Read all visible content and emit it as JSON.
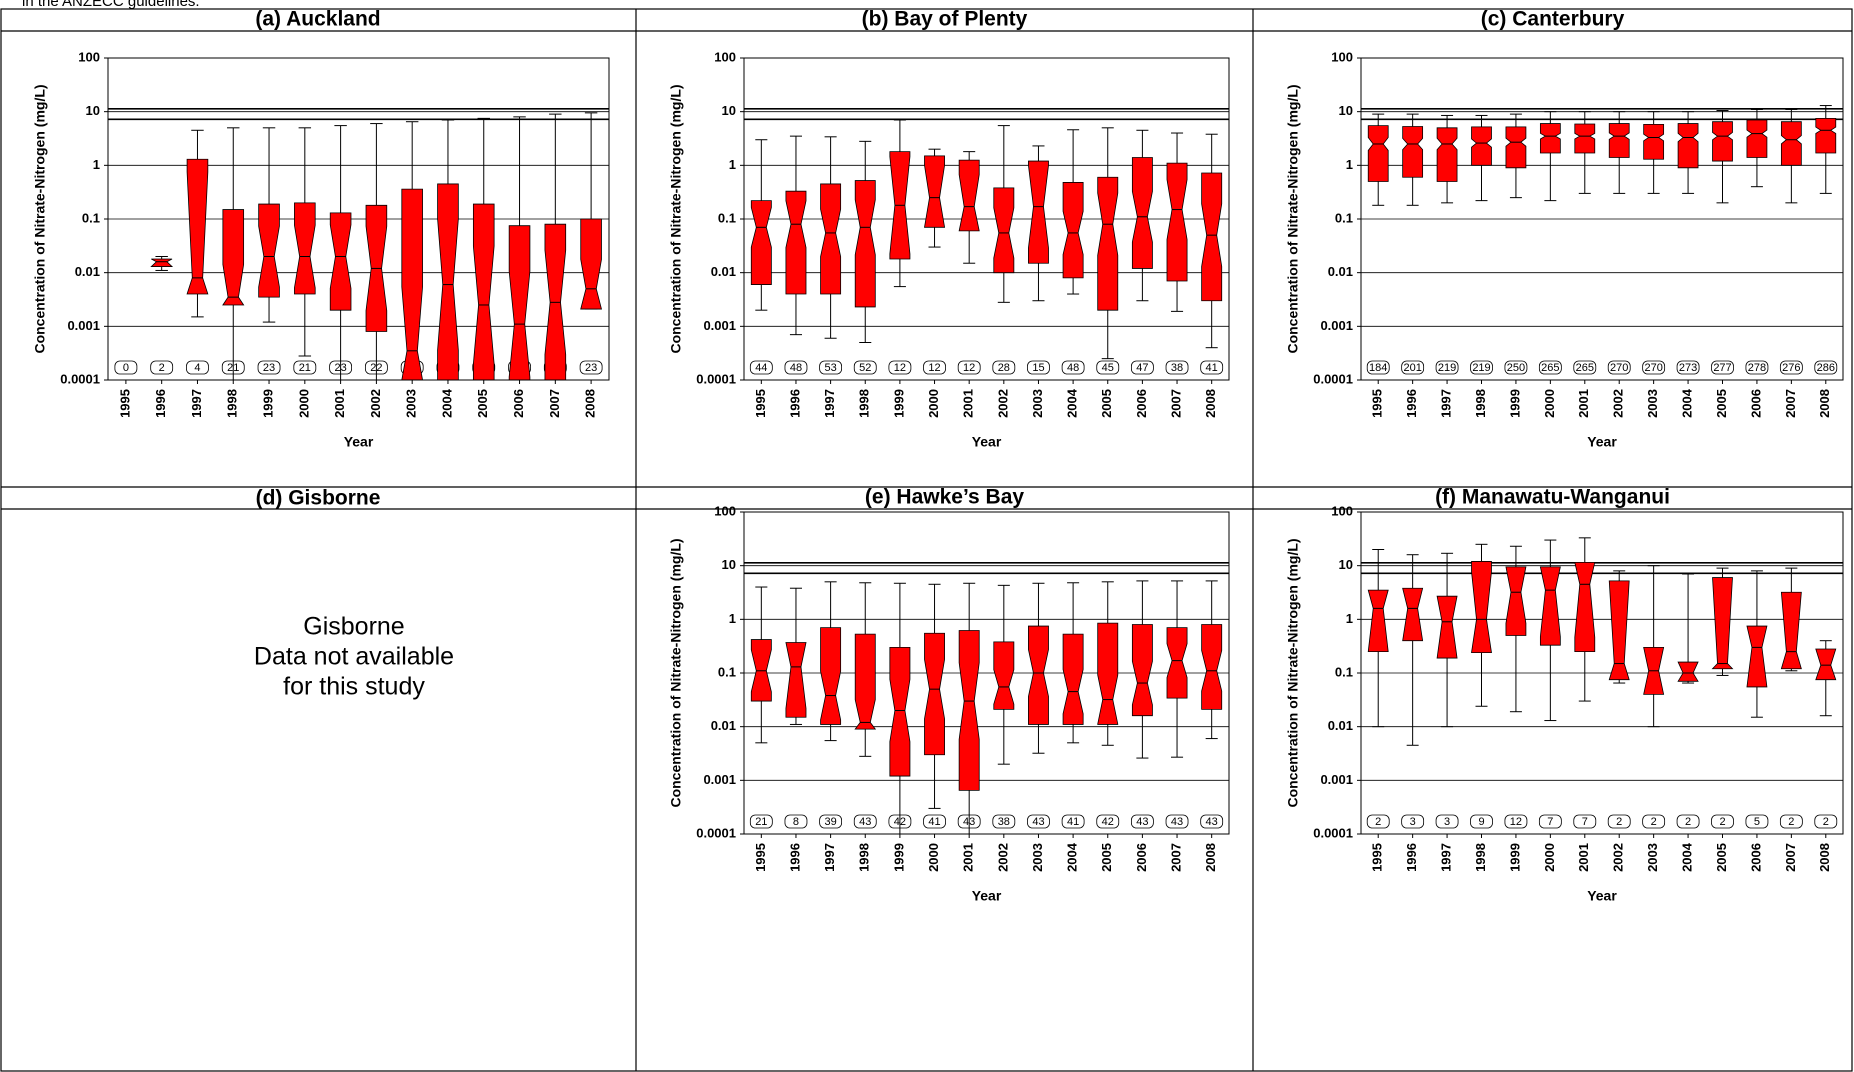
{
  "note": "in the ANZECC guidelines.",
  "panel_d": {
    "title": "(d) Gisborne",
    "lines": [
      "Gisborne",
      "Data not available",
      "for this study"
    ]
  },
  "chart_data": [
    {
      "type": "box",
      "title": "(a) Auckland",
      "xlabel": "Year",
      "ylabel": "Concentration of Nitrate-Nitrogen (mg/L)",
      "categories": [
        "1995",
        "1996",
        "1997",
        "1998",
        "1999",
        "2000",
        "2001",
        "2002",
        "2003",
        "2004",
        "2005",
        "2006",
        "2007",
        "2008"
      ],
      "whisker_low": [
        null,
        0.011,
        0.0015,
        0.0001,
        0.0012,
        0.00028,
        0.0001,
        0.0001,
        0.0001,
        0.0001,
        0.0001,
        0.0001,
        0.0001,
        0.0021
      ],
      "q1": [
        null,
        0.013,
        0.004,
        0.0025,
        0.0035,
        0.004,
        0.002,
        0.0008,
        0.0001,
        0.0001,
        0.0001,
        0.0001,
        0.0001,
        0.0021
      ],
      "median": [
        null,
        0.016,
        0.008,
        0.0035,
        0.02,
        0.02,
        0.02,
        0.012,
        0.00035,
        0.006,
        0.0025,
        0.0011,
        0.0028,
        0.005
      ],
      "q3": [
        null,
        0.018,
        1.3,
        0.15,
        0.19,
        0.2,
        0.13,
        0.18,
        0.36,
        0.45,
        0.19,
        0.075,
        0.08,
        0.1
      ],
      "whisker_high": [
        null,
        0.02,
        4.5,
        5,
        5,
        5,
        5.5,
        6,
        6.5,
        7,
        7.5,
        8,
        9,
        9.5
      ],
      "n": [
        0,
        2,
        4,
        21,
        23,
        21,
        23,
        22,
        22,
        22,
        22,
        21,
        22,
        23
      ],
      "color": "#ff0000",
      "log_y": true,
      "grid": true,
      "reference_lines": [
        7.2,
        11.3
      ],
      "ylim": [
        0.0001,
        100
      ],
      "yticks": [
        0.0001,
        0.001,
        0.01,
        0.1,
        1,
        10,
        100
      ]
    },
    {
      "type": "box",
      "title": "(b) Bay of Plenty",
      "xlabel": "Year",
      "ylabel": "Concentration of Nitrate-Nitrogen (mg/L)",
      "categories": [
        "1995",
        "1996",
        "1997",
        "1998",
        "1999",
        "2000",
        "2001",
        "2002",
        "2003",
        "2004",
        "2005",
        "2006",
        "2007",
        "2008"
      ],
      "whisker_low": [
        0.002,
        0.0007,
        0.0006,
        0.0005,
        0.0055,
        0.03,
        0.015,
        0.0028,
        0.003,
        0.004,
        0.00025,
        0.003,
        0.0019,
        0.0004
      ],
      "q1": [
        0.006,
        0.004,
        0.004,
        0.0023,
        0.018,
        0.07,
        0.06,
        0.01,
        0.015,
        0.008,
        0.002,
        0.012,
        0.007,
        0.003
      ],
      "median": [
        0.07,
        0.08,
        0.055,
        0.07,
        0.18,
        0.25,
        0.17,
        0.055,
        0.17,
        0.055,
        0.08,
        0.11,
        0.15,
        0.05
      ],
      "q3": [
        0.22,
        0.33,
        0.45,
        0.52,
        1.8,
        1.5,
        1.25,
        0.38,
        1.2,
        0.48,
        0.6,
        1.4,
        1.1,
        0.72
      ],
      "whisker_high": [
        3,
        3.5,
        3.4,
        2.8,
        7,
        2,
        1.8,
        5.5,
        2.3,
        4.6,
        5,
        4.5,
        4,
        3.8
      ],
      "n": [
        44,
        48,
        53,
        52,
        12,
        12,
        12,
        28,
        15,
        48,
        45,
        47,
        38,
        41
      ],
      "color": "#ff0000",
      "log_y": true,
      "grid": true,
      "reference_lines": [
        7.2,
        11.3
      ],
      "ylim": [
        0.0001,
        100
      ],
      "yticks": [
        0.0001,
        0.001,
        0.01,
        0.1,
        1,
        10,
        100
      ]
    },
    {
      "type": "box",
      "title": "(c) Canterbury",
      "xlabel": "Year",
      "ylabel": "Concentration of Nitrate-Nitrogen (mg/L)",
      "categories": [
        "1995",
        "1996",
        "1997",
        "1998",
        "1999",
        "2000",
        "2001",
        "2002",
        "2003",
        "2004",
        "2005",
        "2006",
        "2007",
        "2008"
      ],
      "whisker_low": [
        0.18,
        0.18,
        0.2,
        0.22,
        0.25,
        0.22,
        0.3,
        0.3,
        0.3,
        0.3,
        0.2,
        0.4,
        0.2,
        0.3
      ],
      "q1": [
        0.5,
        0.6,
        0.5,
        1,
        0.9,
        1.7,
        1.7,
        1.4,
        1.3,
        0.9,
        1.2,
        1.4,
        1,
        1.7
      ],
      "median": [
        2.5,
        2.5,
        2.5,
        2.6,
        2.7,
        3.5,
        3.5,
        3.5,
        3.3,
        3.3,
        3.5,
        3.9,
        3,
        4.5
      ],
      "q3": [
        5.5,
        5.3,
        5,
        5.2,
        5.2,
        6,
        5.9,
        6,
        5.8,
        6,
        6.5,
        7,
        6.5,
        7.5
      ],
      "whisker_high": [
        9,
        9,
        8.5,
        8.5,
        9,
        10,
        10,
        10,
        10,
        10,
        10.5,
        11,
        11,
        13
      ],
      "n": [
        184,
        201,
        219,
        219,
        250,
        265,
        265,
        270,
        270,
        273,
        277,
        278,
        276,
        286
      ],
      "color": "#ff0000",
      "log_y": true,
      "grid": true,
      "reference_lines": [
        7.2,
        11.3
      ],
      "ylim": [
        0.0001,
        100
      ],
      "yticks": [
        0.0001,
        0.001,
        0.01,
        0.1,
        1,
        10,
        100
      ]
    },
    {
      "type": "box",
      "title": "(e) Hawke’s Bay",
      "xlabel": "Year",
      "ylabel": "Concentration of Nitrate-Nitrogen (mg/L)",
      "categories": [
        "1995",
        "1996",
        "1997",
        "1998",
        "1999",
        "2000",
        "2001",
        "2002",
        "2003",
        "2004",
        "2005",
        "2006",
        "2007",
        "2008"
      ],
      "whisker_low": [
        0.005,
        0.011,
        0.0055,
        0.0028,
        0.0001,
        0.0003,
        0.0001,
        0.002,
        0.0032,
        0.005,
        0.0045,
        0.0026,
        0.0027,
        0.006
      ],
      "q1": [
        0.03,
        0.015,
        0.011,
        0.009,
        0.0012,
        0.003,
        0.00065,
        0.021,
        0.011,
        0.011,
        0.011,
        0.016,
        0.034,
        0.021
      ],
      "median": [
        0.11,
        0.13,
        0.038,
        0.012,
        0.02,
        0.05,
        0.03,
        0.055,
        0.1,
        0.045,
        0.032,
        0.065,
        0.17,
        0.11
      ],
      "q3": [
        0.42,
        0.37,
        0.7,
        0.53,
        0.3,
        0.55,
        0.62,
        0.38,
        0.75,
        0.53,
        0.85,
        0.8,
        0.7,
        0.8
      ],
      "whisker_high": [
        4,
        3.8,
        5,
        4.8,
        4.7,
        4.5,
        4.7,
        4.3,
        4.7,
        4.8,
        5,
        5.2,
        5.2,
        5.2
      ],
      "n": [
        21,
        8,
        39,
        43,
        42,
        41,
        43,
        38,
        43,
        41,
        42,
        43,
        43,
        43
      ],
      "color": "#ff0000",
      "log_y": true,
      "grid": true,
      "reference_lines": [
        7.2,
        11.3
      ],
      "ylim": [
        0.0001,
        100
      ],
      "yticks": [
        0.0001,
        0.001,
        0.01,
        0.1,
        1,
        10,
        100
      ]
    },
    {
      "type": "box",
      "title": "(f) Manawatu-Wanganui",
      "xlabel": "Year",
      "ylabel": "Concentration of Nitrate-Nitrogen (mg/L)",
      "categories": [
        "1995",
        "1996",
        "1997",
        "1998",
        "1999",
        "2000",
        "2001",
        "2002",
        "2003",
        "2004",
        "2005",
        "2006",
        "2007",
        "2008"
      ],
      "whisker_low": [
        0.01,
        0.0045,
        0.01,
        0.024,
        0.019,
        0.013,
        0.03,
        0.065,
        0.01,
        0.065,
        0.09,
        0.015,
        0.11,
        0.016
      ],
      "q1": [
        0.25,
        0.4,
        0.19,
        0.24,
        0.5,
        0.33,
        0.25,
        0.075,
        0.04,
        0.07,
        0.12,
        0.055,
        0.12,
        0.075
      ],
      "median": [
        1.6,
        1.6,
        0.9,
        1,
        3.2,
        3.5,
        4.5,
        0.15,
        0.11,
        0.1,
        0.15,
        0.3,
        0.25,
        0.14
      ],
      "q3": [
        3.5,
        3.8,
        2.7,
        12,
        9.5,
        9.5,
        11.5,
        5.2,
        0.3,
        0.16,
        6,
        0.75,
        3.2,
        0.28
      ],
      "whisker_high": [
        20,
        16,
        17,
        25,
        23,
        30,
        33,
        8,
        10,
        7,
        9,
        8,
        9,
        0.4
      ],
      "n": [
        2,
        3,
        3,
        9,
        12,
        7,
        7,
        2,
        2,
        2,
        2,
        5,
        2,
        2
      ],
      "color": "#ff0000",
      "log_y": true,
      "grid": true,
      "reference_lines": [
        7.2,
        11.3
      ],
      "ylim": [
        0.0001,
        100
      ],
      "yticks": [
        0.0001,
        0.001,
        0.01,
        0.1,
        1,
        10,
        100
      ]
    }
  ]
}
